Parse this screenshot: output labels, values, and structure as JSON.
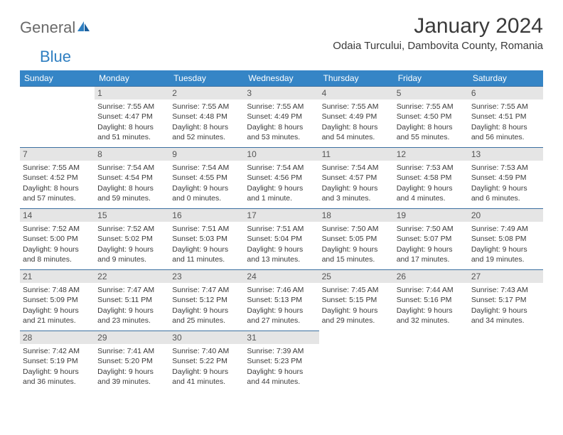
{
  "logo": {
    "text1": "General",
    "text2": "Blue"
  },
  "title": "January 2024",
  "location": "Odaia Turcului, Dambovita County, Romania",
  "days_of_week": [
    "Sunday",
    "Monday",
    "Tuesday",
    "Wednesday",
    "Thursday",
    "Friday",
    "Saturday"
  ],
  "colors": {
    "header_bg": "#3585c6",
    "border": "#3b6fa0",
    "daynum_bg": "#e5e5e5",
    "logo_blue": "#2f7fc1"
  },
  "cells": [
    {
      "day": "",
      "lines": []
    },
    {
      "day": "1",
      "lines": [
        "Sunrise: 7:55 AM",
        "Sunset: 4:47 PM",
        "Daylight: 8 hours",
        "and 51 minutes."
      ]
    },
    {
      "day": "2",
      "lines": [
        "Sunrise: 7:55 AM",
        "Sunset: 4:48 PM",
        "Daylight: 8 hours",
        "and 52 minutes."
      ]
    },
    {
      "day": "3",
      "lines": [
        "Sunrise: 7:55 AM",
        "Sunset: 4:49 PM",
        "Daylight: 8 hours",
        "and 53 minutes."
      ]
    },
    {
      "day": "4",
      "lines": [
        "Sunrise: 7:55 AM",
        "Sunset: 4:49 PM",
        "Daylight: 8 hours",
        "and 54 minutes."
      ]
    },
    {
      "day": "5",
      "lines": [
        "Sunrise: 7:55 AM",
        "Sunset: 4:50 PM",
        "Daylight: 8 hours",
        "and 55 minutes."
      ]
    },
    {
      "day": "6",
      "lines": [
        "Sunrise: 7:55 AM",
        "Sunset: 4:51 PM",
        "Daylight: 8 hours",
        "and 56 minutes."
      ]
    },
    {
      "day": "7",
      "lines": [
        "Sunrise: 7:55 AM",
        "Sunset: 4:52 PM",
        "Daylight: 8 hours",
        "and 57 minutes."
      ]
    },
    {
      "day": "8",
      "lines": [
        "Sunrise: 7:54 AM",
        "Sunset: 4:54 PM",
        "Daylight: 8 hours",
        "and 59 minutes."
      ]
    },
    {
      "day": "9",
      "lines": [
        "Sunrise: 7:54 AM",
        "Sunset: 4:55 PM",
        "Daylight: 9 hours",
        "and 0 minutes."
      ]
    },
    {
      "day": "10",
      "lines": [
        "Sunrise: 7:54 AM",
        "Sunset: 4:56 PM",
        "Daylight: 9 hours",
        "and 1 minute."
      ]
    },
    {
      "day": "11",
      "lines": [
        "Sunrise: 7:54 AM",
        "Sunset: 4:57 PM",
        "Daylight: 9 hours",
        "and 3 minutes."
      ]
    },
    {
      "day": "12",
      "lines": [
        "Sunrise: 7:53 AM",
        "Sunset: 4:58 PM",
        "Daylight: 9 hours",
        "and 4 minutes."
      ]
    },
    {
      "day": "13",
      "lines": [
        "Sunrise: 7:53 AM",
        "Sunset: 4:59 PM",
        "Daylight: 9 hours",
        "and 6 minutes."
      ]
    },
    {
      "day": "14",
      "lines": [
        "Sunrise: 7:52 AM",
        "Sunset: 5:00 PM",
        "Daylight: 9 hours",
        "and 8 minutes."
      ]
    },
    {
      "day": "15",
      "lines": [
        "Sunrise: 7:52 AM",
        "Sunset: 5:02 PM",
        "Daylight: 9 hours",
        "and 9 minutes."
      ]
    },
    {
      "day": "16",
      "lines": [
        "Sunrise: 7:51 AM",
        "Sunset: 5:03 PM",
        "Daylight: 9 hours",
        "and 11 minutes."
      ]
    },
    {
      "day": "17",
      "lines": [
        "Sunrise: 7:51 AM",
        "Sunset: 5:04 PM",
        "Daylight: 9 hours",
        "and 13 minutes."
      ]
    },
    {
      "day": "18",
      "lines": [
        "Sunrise: 7:50 AM",
        "Sunset: 5:05 PM",
        "Daylight: 9 hours",
        "and 15 minutes."
      ]
    },
    {
      "day": "19",
      "lines": [
        "Sunrise: 7:50 AM",
        "Sunset: 5:07 PM",
        "Daylight: 9 hours",
        "and 17 minutes."
      ]
    },
    {
      "day": "20",
      "lines": [
        "Sunrise: 7:49 AM",
        "Sunset: 5:08 PM",
        "Daylight: 9 hours",
        "and 19 minutes."
      ]
    },
    {
      "day": "21",
      "lines": [
        "Sunrise: 7:48 AM",
        "Sunset: 5:09 PM",
        "Daylight: 9 hours",
        "and 21 minutes."
      ]
    },
    {
      "day": "22",
      "lines": [
        "Sunrise: 7:47 AM",
        "Sunset: 5:11 PM",
        "Daylight: 9 hours",
        "and 23 minutes."
      ]
    },
    {
      "day": "23",
      "lines": [
        "Sunrise: 7:47 AM",
        "Sunset: 5:12 PM",
        "Daylight: 9 hours",
        "and 25 minutes."
      ]
    },
    {
      "day": "24",
      "lines": [
        "Sunrise: 7:46 AM",
        "Sunset: 5:13 PM",
        "Daylight: 9 hours",
        "and 27 minutes."
      ]
    },
    {
      "day": "25",
      "lines": [
        "Sunrise: 7:45 AM",
        "Sunset: 5:15 PM",
        "Daylight: 9 hours",
        "and 29 minutes."
      ]
    },
    {
      "day": "26",
      "lines": [
        "Sunrise: 7:44 AM",
        "Sunset: 5:16 PM",
        "Daylight: 9 hours",
        "and 32 minutes."
      ]
    },
    {
      "day": "27",
      "lines": [
        "Sunrise: 7:43 AM",
        "Sunset: 5:17 PM",
        "Daylight: 9 hours",
        "and 34 minutes."
      ]
    },
    {
      "day": "28",
      "lines": [
        "Sunrise: 7:42 AM",
        "Sunset: 5:19 PM",
        "Daylight: 9 hours",
        "and 36 minutes."
      ]
    },
    {
      "day": "29",
      "lines": [
        "Sunrise: 7:41 AM",
        "Sunset: 5:20 PM",
        "Daylight: 9 hours",
        "and 39 minutes."
      ]
    },
    {
      "day": "30",
      "lines": [
        "Sunrise: 7:40 AM",
        "Sunset: 5:22 PM",
        "Daylight: 9 hours",
        "and 41 minutes."
      ]
    },
    {
      "day": "31",
      "lines": [
        "Sunrise: 7:39 AM",
        "Sunset: 5:23 PM",
        "Daylight: 9 hours",
        "and 44 minutes."
      ]
    }
  ]
}
